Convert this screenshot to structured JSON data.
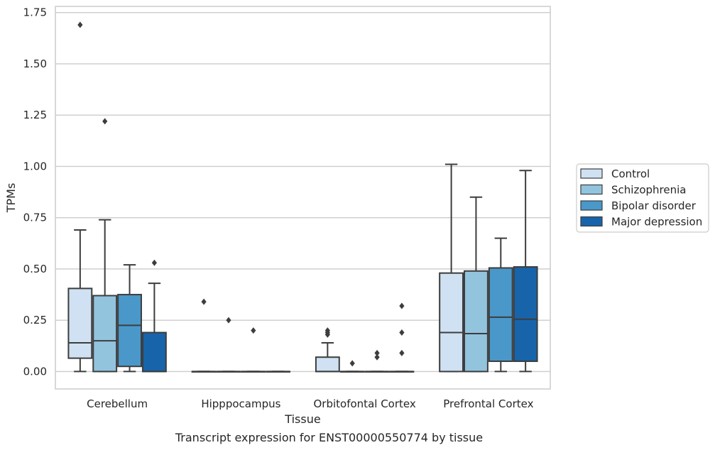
{
  "chart_data": {
    "type": "box",
    "title": "",
    "caption": "Transcript expression for ENST00000550774 by tissue",
    "xlabel": "Tissue",
    "ylabel": "TPMs",
    "ylim": [
      -0.085,
      1.78
    ],
    "yticks": [
      "0.00",
      "0.25",
      "0.50",
      "0.75",
      "1.00",
      "1.25",
      "1.50",
      "1.75"
    ],
    "ytick_values": [
      0,
      0.25,
      0.5,
      0.75,
      1.0,
      1.25,
      1.5,
      1.75
    ],
    "grid": "horizontal",
    "legend_position": "right",
    "categories": [
      "Cerebellum",
      "Hipppocampus",
      "Orbitofontal Cortex",
      "Prefrontal Cortex"
    ],
    "series": [
      {
        "name": "Control",
        "color": "#cfe1f2",
        "boxes": [
          {
            "q1": 0.065,
            "median": 0.14,
            "q3": 0.405,
            "whisker_low": 0.0,
            "whisker_high": 0.69,
            "outliers": [
              1.69
            ]
          },
          {
            "q1": 0.0,
            "median": 0.0,
            "q3": 0.0,
            "whisker_low": 0.0,
            "whisker_high": 0.0,
            "outliers": [
              0.34
            ]
          },
          {
            "q1": 0.0,
            "median": 0.0,
            "q3": 0.07,
            "whisker_low": 0.0,
            "whisker_high": 0.14,
            "outliers": [
              0.18,
              0.19,
              0.2
            ]
          },
          {
            "q1": 0.0,
            "median": 0.19,
            "q3": 0.48,
            "whisker_low": 0.0,
            "whisker_high": 1.01,
            "outliers": []
          }
        ]
      },
      {
        "name": "Schizophrenia",
        "color": "#93c4de",
        "boxes": [
          {
            "q1": 0.0,
            "median": 0.15,
            "q3": 0.37,
            "whisker_low": 0.0,
            "whisker_high": 0.74,
            "outliers": [
              1.22
            ]
          },
          {
            "q1": 0.0,
            "median": 0.0,
            "q3": 0.0,
            "whisker_low": 0.0,
            "whisker_high": 0.0,
            "outliers": [
              0.25
            ]
          },
          {
            "q1": 0.0,
            "median": 0.0,
            "q3": 0.0,
            "whisker_low": 0.0,
            "whisker_high": 0.0,
            "outliers": [
              0.04
            ]
          },
          {
            "q1": 0.0,
            "median": 0.185,
            "q3": 0.49,
            "whisker_low": 0.0,
            "whisker_high": 0.85,
            "outliers": []
          }
        ]
      },
      {
        "name": "Bipolar disorder",
        "color": "#4a98c9",
        "boxes": [
          {
            "q1": 0.025,
            "median": 0.225,
            "q3": 0.375,
            "whisker_low": 0.0,
            "whisker_high": 0.52,
            "outliers": []
          },
          {
            "q1": 0.0,
            "median": 0.0,
            "q3": 0.0,
            "whisker_low": 0.0,
            "whisker_high": 0.0,
            "outliers": [
              0.2
            ]
          },
          {
            "q1": 0.0,
            "median": 0.0,
            "q3": 0.0,
            "whisker_low": 0.0,
            "whisker_high": 0.0,
            "outliers": [
              0.07,
              0.09
            ]
          },
          {
            "q1": 0.05,
            "median": 0.265,
            "q3": 0.505,
            "whisker_low": 0.0,
            "whisker_high": 0.65,
            "outliers": []
          }
        ]
      },
      {
        "name": "Major depression",
        "color": "#1764ab",
        "boxes": [
          {
            "q1": 0.0,
            "median": 0.0,
            "q3": 0.19,
            "whisker_low": 0.0,
            "whisker_high": 0.43,
            "outliers": [
              0.53
            ]
          },
          {
            "q1": 0.0,
            "median": 0.0,
            "q3": 0.0,
            "whisker_low": 0.0,
            "whisker_high": 0.0,
            "outliers": []
          },
          {
            "q1": 0.0,
            "median": 0.0,
            "q3": 0.0,
            "whisker_low": 0.0,
            "whisker_high": 0.0,
            "outliers": [
              0.09,
              0.19,
              0.32
            ]
          },
          {
            "q1": 0.05,
            "median": 0.255,
            "q3": 0.51,
            "whisker_low": 0.0,
            "whisker_high": 0.98,
            "outliers": []
          }
        ]
      }
    ]
  }
}
